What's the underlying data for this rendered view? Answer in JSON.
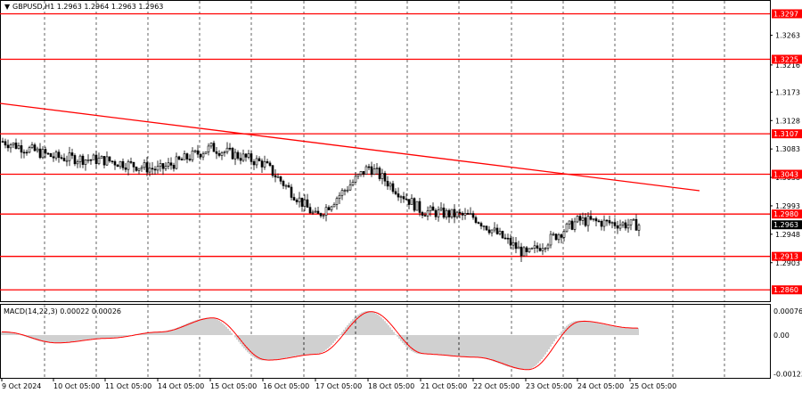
{
  "symbol_header": "GBPUSD,H1  1.2963 1.2964 1.2963 1.2963",
  "macd_header": "MACD(14,22,3) 0.00022 0.00026",
  "current_price": "1.2963",
  "colors": {
    "background": "#ffffff",
    "candle": "#000000",
    "level_line": "#ff0000",
    "level_label_bg": "#ff0000",
    "price_label_bg": "#000000",
    "macd_hist": "#a0a0a0",
    "macd_signal": "#ff0000",
    "grid": "#000000"
  },
  "price_axis": {
    "labels": [
      "1.3263",
      "1.3216",
      "1.3173",
      "1.3128",
      "1.3083",
      "1.3038",
      "1.2993",
      "1.2948",
      "1.2903"
    ],
    "ylim": [
      1.2842,
      1.3316
    ]
  },
  "levels": [
    "1.3297",
    "1.3225",
    "1.3107",
    "1.3043",
    "1.2980",
    "1.2913",
    "1.2860"
  ],
  "macd_axis": {
    "labels": [
      "0.00076",
      "0.00",
      "-0.00123"
    ],
    "ylim": [
      -0.00145,
      0.00098
    ]
  },
  "time_axis": [
    "9 Oct 2024",
    "10 Oct 05:00",
    "11 Oct 05:00",
    "14 Oct 05:00",
    "15 Oct 05:00",
    "16 Oct 05:00",
    "17 Oct 05:00",
    "18 Oct 05:00",
    "21 Oct 05:00",
    "22 Oct 05:00",
    "23 Oct 05:00",
    "24 Oct 05:00",
    "25 Oct 05:00"
  ],
  "chart_data": {
    "type": "line",
    "title": "GBPUSD,H1",
    "series": [
      {
        "name": "GBPUSD,H1",
        "x": [
          "9 Oct 2024",
          "10 Oct 05:00",
          "11 Oct 05:00",
          "14 Oct 05:00",
          "15 Oct 05:00",
          "16 Oct 05:00",
          "17 Oct 05:00",
          "18 Oct 05:00",
          "21 Oct 05:00",
          "22 Oct 05:00",
          "23 Oct 05:00",
          "24 Oct 05:00",
          "25 Oct 05:00"
        ],
        "values": [
          1.3095,
          1.307,
          1.3065,
          1.305,
          1.3085,
          1.306,
          1.2975,
          1.3055,
          1.2985,
          1.2975,
          1.2915,
          1.297,
          1.2963
        ]
      },
      {
        "name": "MACD(14,22,3)",
        "x": [
          "9 Oct 2024",
          "10 Oct 05:00",
          "11 Oct 05:00",
          "14 Oct 05:00",
          "15 Oct 05:00",
          "16 Oct 05:00",
          "17 Oct 05:00",
          "18 Oct 05:00",
          "21 Oct 05:00",
          "22 Oct 05:00",
          "23 Oct 05:00",
          "24 Oct 05:00",
          "25 Oct 05:00"
        ],
        "values": [
          0.0001,
          -0.00025,
          -0.0001,
          0.0001,
          0.00055,
          -0.0008,
          -0.0006,
          0.00076,
          -0.0006,
          -0.0007,
          -0.0011,
          0.00045,
          0.00022
        ]
      }
    ],
    "horizontal_levels": [
      1.3297,
      1.3225,
      1.3107,
      1.3043,
      1.298,
      1.2913,
      1.286
    ],
    "trendline": {
      "from": [
        "9 Oct 2024",
        1.315
      ],
      "to": [
        "25 Oct 05:00",
        1.302
      ]
    },
    "ylim": [
      1.2842,
      1.3316
    ],
    "grid": true
  }
}
